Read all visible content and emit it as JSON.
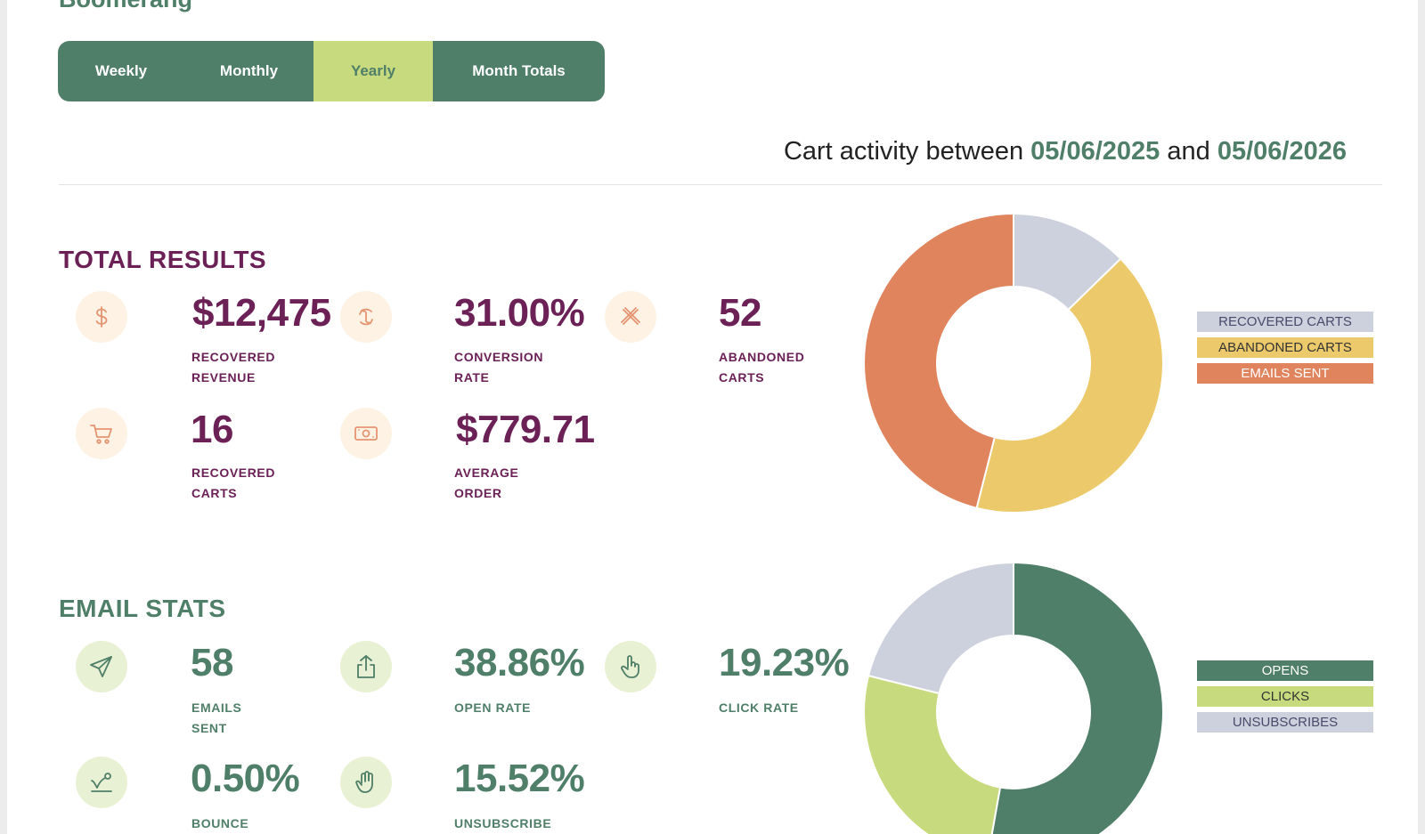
{
  "app": {
    "title": "Boomerang"
  },
  "tabs": [
    {
      "label": "Weekly",
      "active": false
    },
    {
      "label": "Monthly",
      "active": false
    },
    {
      "label": "Yearly",
      "active": true
    },
    {
      "label": "Month Totals",
      "active": false
    }
  ],
  "range": {
    "prefix": "Cart activity between",
    "start": "05/06/2025",
    "joiner": "and",
    "end": "05/06/2026"
  },
  "total_results": {
    "title": "TOTAL RESULTS",
    "color": "#6b2056",
    "stats": [
      {
        "icon": "dollar-icon",
        "value": "$12,475",
        "label_1": "RECOVERED",
        "label_2": "REVENUE"
      },
      {
        "icon": "refresh-icon",
        "value": "31.00%",
        "label_1": "CONVERSION",
        "label_2": "RATE"
      },
      {
        "icon": "close-x-icon",
        "value": "52",
        "label_1": "ABANDONED",
        "label_2": "CARTS"
      },
      {
        "icon": "cart-icon",
        "value": "16",
        "label_1": "RECOVERED",
        "label_2": "CARTS"
      },
      {
        "icon": "cash-icon",
        "value": "$779.71",
        "label_1": "AVERAGE",
        "label_2": "ORDER"
      }
    ]
  },
  "email_stats": {
    "title": "EMAIL STATS",
    "color": "#4f7f68",
    "stats": [
      {
        "icon": "send-icon",
        "value": "58",
        "label_1": "EMAILS",
        "label_2": "SENT"
      },
      {
        "icon": "share-icon",
        "value": "38.86%",
        "label_1": "OPEN RATE",
        "label_2": ""
      },
      {
        "icon": "pointer-hand-icon",
        "value": "19.23%",
        "label_1": "CLICK RATE",
        "label_2": ""
      },
      {
        "icon": "bounce-icon",
        "value": "0.50%",
        "label_1": "BOUNCE",
        "label_2": ""
      },
      {
        "icon": "stop-hand-icon",
        "value": "15.52%",
        "label_1": "UNSUBSCRIBE",
        "label_2": ""
      }
    ]
  },
  "chart_data": [
    {
      "type": "pie",
      "variant": "donut",
      "categories": [
        "RECOVERED CARTS",
        "ABANDONED CARTS",
        "EMAILS SENT"
      ],
      "values": [
        16,
        52,
        58
      ],
      "colors": [
        "#cdd0dd",
        "#ecca6b",
        "#e0845e"
      ],
      "legend_text_colors": [
        "#4a4a6a",
        "#333333",
        "#ffffff"
      ],
      "legend": "right"
    },
    {
      "type": "pie",
      "variant": "donut",
      "categories": [
        "OPENS",
        "CLICKS",
        "UNSUBSCRIBES"
      ],
      "values": [
        38.86,
        19.23,
        15.52
      ],
      "colors": [
        "#4f7f68",
        "#c8da7e",
        "#cdd0dd"
      ],
      "legend_text_colors": [
        "#ffffff",
        "#333333",
        "#4a4a6a"
      ],
      "legend": "right"
    }
  ]
}
